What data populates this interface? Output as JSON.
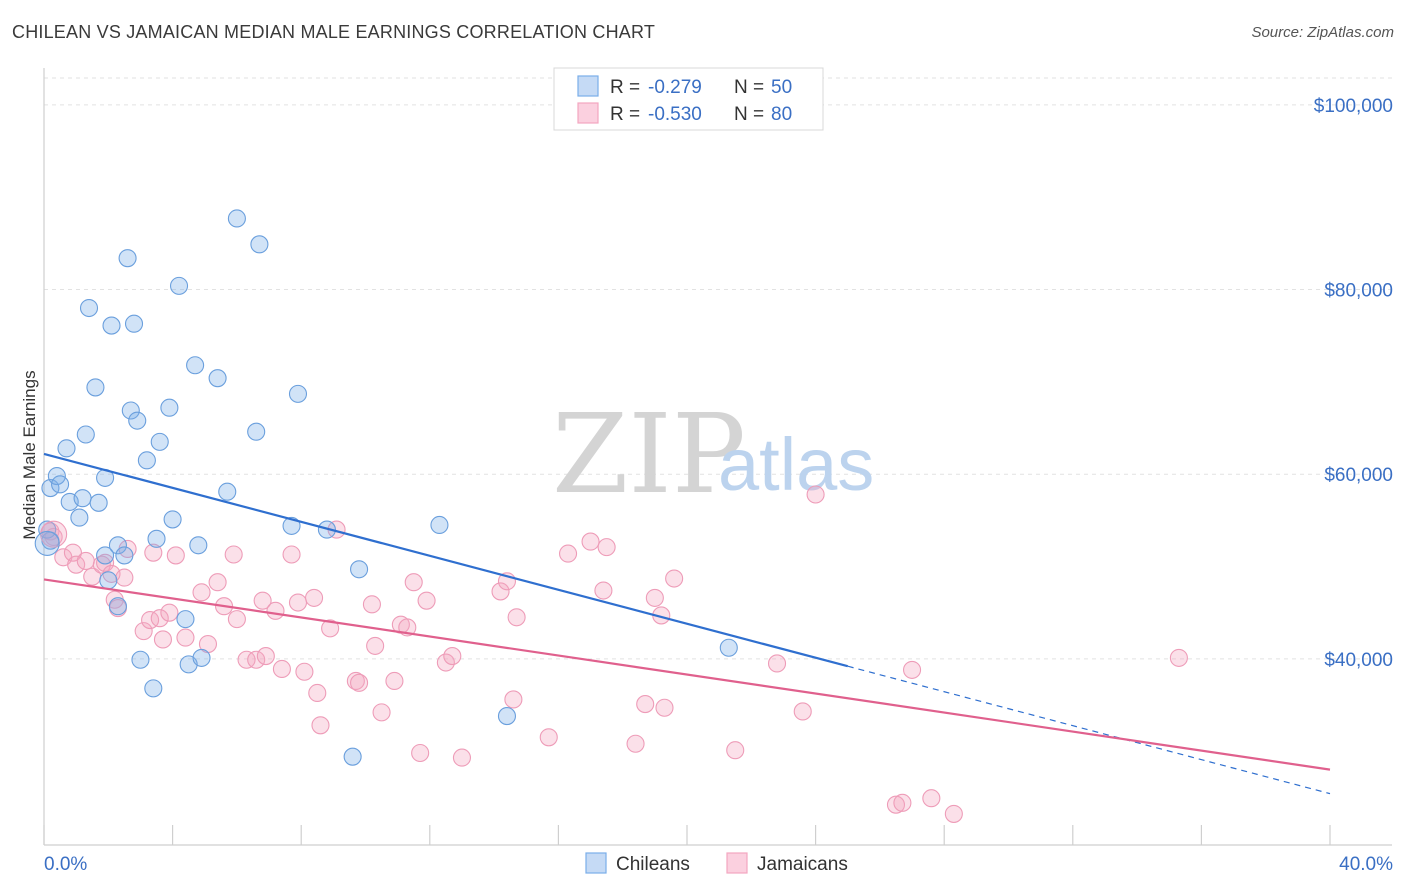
{
  "title": "CHILEAN VS JAMAICAN MEDIAN MALE EARNINGS CORRELATION CHART",
  "source": "Source: ZipAtlas.com",
  "watermark": {
    "zip": "ZIP",
    "atlas": "atlas"
  },
  "chart_data": {
    "type": "scatter",
    "title": "CHILEAN VS JAMAICAN MEDIAN MALE EARNINGS CORRELATION CHART",
    "xlabel": "",
    "ylabel": "Median Male Earnings",
    "xlim": [
      0,
      40
    ],
    "ylim": [
      22000,
      104000
    ],
    "x_tick_labels": [
      "0.0%",
      "40.0%"
    ],
    "y_ticks": [
      40000,
      60000,
      80000,
      100000
    ],
    "y_tick_labels": [
      "$40,000",
      "$60,000",
      "$80,000",
      "$100,000"
    ],
    "grid": true,
    "legend_position": "top-center",
    "legend": [
      {
        "label": "R = ",
        "r": "-0.279",
        "n_label": "N = ",
        "n": "50"
      },
      {
        "label": "R = ",
        "r": "-0.530",
        "n_label": "N = ",
        "n": "80"
      }
    ],
    "series": [
      {
        "name": "Chileans",
        "color": "#7aaee8",
        "line_color": "#2f6fcf",
        "trend": {
          "x0": 0,
          "y0": 62200,
          "x1": 25,
          "y1": 39200,
          "dashed_to_x": 40,
          "dashed_to_y": 25400
        },
        "points": [
          [
            0.2,
            58500
          ],
          [
            0.2,
            52800
          ],
          [
            0.4,
            59800
          ],
          [
            0.5,
            58900
          ],
          [
            0.7,
            62800
          ],
          [
            0.8,
            57000
          ],
          [
            1.1,
            55300
          ],
          [
            1.2,
            57400
          ],
          [
            1.3,
            64300
          ],
          [
            1.4,
            78000
          ],
          [
            1.6,
            69400
          ],
          [
            1.7,
            56900
          ],
          [
            1.9,
            59600
          ],
          [
            1.9,
            51200
          ],
          [
            2.0,
            48500
          ],
          [
            2.1,
            76100
          ],
          [
            2.3,
            52300
          ],
          [
            2.3,
            45700
          ],
          [
            2.5,
            51200
          ],
          [
            2.6,
            83400
          ],
          [
            2.7,
            66900
          ],
          [
            2.8,
            76300
          ],
          [
            2.9,
            65800
          ],
          [
            3.0,
            39900
          ],
          [
            3.2,
            61500
          ],
          [
            3.4,
            36800
          ],
          [
            3.5,
            53000
          ],
          [
            3.6,
            63500
          ],
          [
            3.9,
            67200
          ],
          [
            4.0,
            55100
          ],
          [
            4.2,
            80400
          ],
          [
            4.4,
            44300
          ],
          [
            4.5,
            39400
          ],
          [
            4.7,
            71800
          ],
          [
            4.8,
            52300
          ],
          [
            4.9,
            40100
          ],
          [
            5.4,
            70400
          ],
          [
            5.7,
            58100
          ],
          [
            6.0,
            87700
          ],
          [
            6.6,
            64600
          ],
          [
            6.7,
            84900
          ],
          [
            7.7,
            54400
          ],
          [
            7.9,
            68700
          ],
          [
            8.8,
            54000
          ],
          [
            9.6,
            29400
          ],
          [
            9.8,
            49700
          ],
          [
            12.3,
            54500
          ],
          [
            14.4,
            33800
          ],
          [
            21.3,
            41200
          ],
          [
            0.1,
            54000
          ]
        ]
      },
      {
        "name": "Jamaicans",
        "color": "#f4a6c0",
        "line_color": "#e0608d",
        "trend": {
          "x0": 0,
          "y0": 48600,
          "x1": 40,
          "y1": 28000
        },
        "points": [
          [
            0.2,
            53800
          ],
          [
            0.3,
            53200
          ],
          [
            0.6,
            51000
          ],
          [
            0.9,
            51500
          ],
          [
            1.0,
            50200
          ],
          [
            1.3,
            50600
          ],
          [
            1.5,
            48900
          ],
          [
            1.8,
            50200
          ],
          [
            1.9,
            50400
          ],
          [
            2.1,
            49200
          ],
          [
            2.2,
            46400
          ],
          [
            2.3,
            45500
          ],
          [
            2.5,
            48800
          ],
          [
            2.6,
            51900
          ],
          [
            3.1,
            43000
          ],
          [
            3.3,
            44200
          ],
          [
            3.4,
            51500
          ],
          [
            3.6,
            44400
          ],
          [
            3.7,
            42100
          ],
          [
            3.9,
            45000
          ],
          [
            4.1,
            51200
          ],
          [
            4.4,
            42300
          ],
          [
            4.9,
            47200
          ],
          [
            5.1,
            41600
          ],
          [
            5.4,
            48300
          ],
          [
            5.6,
            45700
          ],
          [
            5.9,
            51300
          ],
          [
            6.0,
            44300
          ],
          [
            6.3,
            39900
          ],
          [
            6.6,
            39900
          ],
          [
            6.8,
            46300
          ],
          [
            6.9,
            40300
          ],
          [
            7.2,
            45200
          ],
          [
            7.4,
            38900
          ],
          [
            7.7,
            51300
          ],
          [
            7.9,
            46100
          ],
          [
            8.1,
            38600
          ],
          [
            8.4,
            46600
          ],
          [
            8.5,
            36300
          ],
          [
            8.6,
            32800
          ],
          [
            8.9,
            43300
          ],
          [
            9.1,
            54000
          ],
          [
            9.7,
            37600
          ],
          [
            9.8,
            37400
          ],
          [
            10.2,
            45900
          ],
          [
            10.3,
            41400
          ],
          [
            10.5,
            34200
          ],
          [
            10.9,
            37600
          ],
          [
            11.1,
            43700
          ],
          [
            11.3,
            43400
          ],
          [
            11.5,
            48300
          ],
          [
            11.7,
            29800
          ],
          [
            11.9,
            46300
          ],
          [
            12.5,
            39600
          ],
          [
            12.7,
            40300
          ],
          [
            13.0,
            29300
          ],
          [
            14.2,
            47300
          ],
          [
            14.4,
            48400
          ],
          [
            14.6,
            35600
          ],
          [
            14.7,
            44500
          ],
          [
            15.7,
            31500
          ],
          [
            16.3,
            51400
          ],
          [
            17.0,
            52700
          ],
          [
            17.4,
            47400
          ],
          [
            17.5,
            52100
          ],
          [
            18.4,
            30800
          ],
          [
            18.7,
            35100
          ],
          [
            19.0,
            46600
          ],
          [
            19.2,
            44700
          ],
          [
            19.3,
            34700
          ],
          [
            19.6,
            48700
          ],
          [
            21.5,
            30100
          ],
          [
            22.8,
            39500
          ],
          [
            23.6,
            34300
          ],
          [
            24.0,
            57800
          ],
          [
            26.5,
            24200
          ],
          [
            26.7,
            24400
          ],
          [
            27.0,
            38800
          ],
          [
            27.6,
            24900
          ],
          [
            28.3,
            23200
          ]
        ]
      }
    ]
  },
  "bottom_legend": [
    "Chileans",
    "Jamaicans"
  ],
  "extra_points": {
    "Jamaicans_far": [
      [
        35.3,
        40100
      ]
    ]
  }
}
